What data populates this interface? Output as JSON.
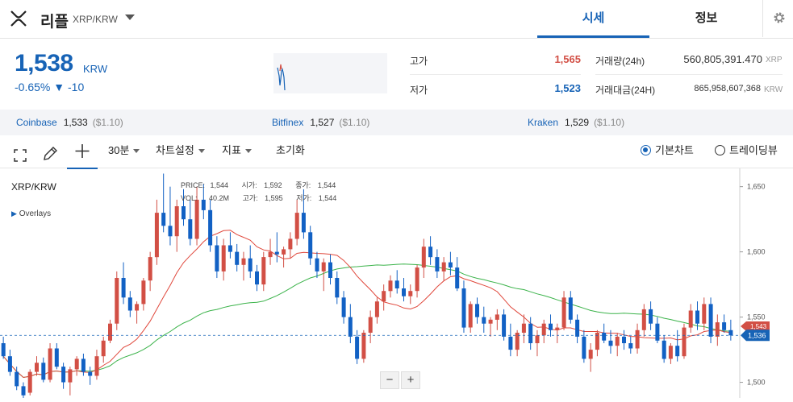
{
  "header": {
    "coin_name": "리플",
    "pair": "XRP/KRW",
    "tabs": [
      {
        "label": "시세",
        "active": true
      },
      {
        "label": "정보",
        "active": false
      }
    ],
    "icons": {
      "logo": "xrp-logo",
      "dropdown": "chevron-down-icon",
      "settings": "gear-icon"
    }
  },
  "summary": {
    "price": "1,538",
    "price_unit": "KRW",
    "change_pct": "-0.65%",
    "change_arrow": "▼",
    "change_abs": "-10",
    "high_label": "고가",
    "high_value": "1,565",
    "low_label": "저가",
    "low_value": "1,523",
    "volume_label": "거래량(24h)",
    "volume_value": "560,805,391.470",
    "volume_unit": "XRP",
    "amount_label": "거래대금(24H)",
    "amount_value": "865,958,607,368",
    "amount_unit": "KRW"
  },
  "exchanges": [
    {
      "name": "Coinbase",
      "price": "1,533",
      "usd": "($1.10)"
    },
    {
      "name": "Bitfinex",
      "price": "1,527",
      "usd": "($1.10)"
    },
    {
      "name": "Kraken",
      "price": "1,529",
      "usd": "($1.10)"
    }
  ],
  "toolbar": {
    "interval": "30분",
    "chart_settings": "차트설정",
    "indicators": "지표",
    "reset": "초기화",
    "view_basic": "기본차트",
    "view_tradingview": "트레이딩뷰",
    "icons": [
      "fullscreen-icon",
      "pencil-icon",
      "crosshair-icon"
    ]
  },
  "chart_panel": {
    "symbol": "XRP/KRW",
    "overlays": "Overlays",
    "ohlc": {
      "price_label": "PRICE:",
      "price": "1,544",
      "open_label": "시가:",
      "open": "1,592",
      "close_label": "종가:",
      "close": "1,544",
      "vol_label": "VOL:",
      "vol": "40.2M",
      "high_label": "고가:",
      "high": "1,595",
      "low_label": "저가:",
      "low": "1,544"
    },
    "zoom_out": "−",
    "zoom_in": "+"
  },
  "colors": {
    "up": "#d24f45",
    "down": "#1261c4",
    "ma_short": "#e0483c",
    "ma_long": "#3bb34a",
    "accent": "#1763b6"
  },
  "chart_data": {
    "type": "candlestick",
    "y_ticks": [
      "1,650",
      "1,600",
      "1,550",
      "1,500"
    ],
    "ylim": [
      1488,
      1664
    ],
    "last_price_tag": "1,536",
    "prev_tag": "1,543",
    "last_price": 1536,
    "grid": false,
    "series": [
      {
        "values": [
          [
            1530,
            1535,
            1518,
            1520
          ],
          [
            1520,
            1525,
            1505,
            1508
          ],
          [
            1508,
            1512,
            1494,
            1497
          ],
          [
            1497,
            1500,
            1488,
            1490
          ],
          [
            1492,
            1510,
            1490,
            1508
          ],
          [
            1508,
            1520,
            1505,
            1515
          ],
          [
            1515,
            1519,
            1500,
            1502
          ],
          [
            1502,
            1530,
            1500,
            1526
          ],
          [
            1526,
            1530,
            1510,
            1512
          ],
          [
            1512,
            1515,
            1495,
            1500
          ],
          [
            1500,
            1512,
            1490,
            1510
          ],
          [
            1510,
            1520,
            1505,
            1518
          ],
          [
            1518,
            1522,
            1505,
            1508
          ],
          [
            1508,
            1512,
            1498,
            1505
          ],
          [
            1505,
            1525,
            1502,
            1520
          ],
          [
            1520,
            1535,
            1515,
            1532
          ],
          [
            1532,
            1548,
            1530,
            1545
          ],
          [
            1545,
            1585,
            1540,
            1580
          ],
          [
            1580,
            1592,
            1560,
            1565
          ],
          [
            1565,
            1570,
            1550,
            1555
          ],
          [
            1555,
            1562,
            1545,
            1560
          ],
          [
            1560,
            1580,
            1555,
            1578
          ],
          [
            1578,
            1600,
            1570,
            1596
          ],
          [
            1596,
            1640,
            1590,
            1630
          ],
          [
            1630,
            1660,
            1615,
            1620
          ],
          [
            1620,
            1650,
            1605,
            1612
          ],
          [
            1612,
            1640,
            1600,
            1635
          ],
          [
            1635,
            1648,
            1620,
            1625
          ],
          [
            1625,
            1640,
            1605,
            1610
          ],
          [
            1610,
            1650,
            1605,
            1640
          ],
          [
            1640,
            1652,
            1625,
            1632
          ],
          [
            1632,
            1640,
            1600,
            1605
          ],
          [
            1605,
            1612,
            1580,
            1585
          ],
          [
            1585,
            1610,
            1578,
            1605
          ],
          [
            1605,
            1615,
            1595,
            1600
          ],
          [
            1600,
            1606,
            1585,
            1590
          ],
          [
            1590,
            1600,
            1578,
            1595
          ],
          [
            1595,
            1605,
            1580,
            1585
          ],
          [
            1585,
            1590,
            1570,
            1575
          ],
          [
            1575,
            1600,
            1570,
            1596
          ],
          [
            1596,
            1610,
            1590,
            1600
          ],
          [
            1600,
            1615,
            1592,
            1598
          ],
          [
            1598,
            1604,
            1588,
            1602
          ],
          [
            1602,
            1615,
            1595,
            1610
          ],
          [
            1610,
            1640,
            1605,
            1630
          ],
          [
            1630,
            1648,
            1610,
            1615
          ],
          [
            1615,
            1620,
            1590,
            1595
          ],
          [
            1595,
            1600,
            1580,
            1585
          ],
          [
            1585,
            1595,
            1570,
            1592
          ],
          [
            1592,
            1598,
            1575,
            1580
          ],
          [
            1580,
            1585,
            1560,
            1565
          ],
          [
            1565,
            1570,
            1545,
            1550
          ],
          [
            1550,
            1560,
            1530,
            1535
          ],
          [
            1535,
            1540,
            1514,
            1518
          ],
          [
            1518,
            1540,
            1515,
            1538
          ],
          [
            1538,
            1555,
            1530,
            1550
          ],
          [
            1550,
            1565,
            1545,
            1562
          ],
          [
            1562,
            1575,
            1555,
            1570
          ],
          [
            1570,
            1582,
            1565,
            1578
          ],
          [
            1578,
            1586,
            1568,
            1572
          ],
          [
            1572,
            1580,
            1562,
            1566
          ],
          [
            1566,
            1575,
            1560,
            1570
          ],
          [
            1570,
            1590,
            1565,
            1588
          ],
          [
            1588,
            1610,
            1580,
            1604
          ],
          [
            1604,
            1612,
            1590,
            1596
          ],
          [
            1596,
            1602,
            1580,
            1585
          ],
          [
            1585,
            1596,
            1578,
            1592
          ],
          [
            1592,
            1600,
            1582,
            1588
          ],
          [
            1588,
            1596,
            1570,
            1572
          ],
          [
            1572,
            1578,
            1538,
            1542
          ],
          [
            1542,
            1562,
            1538,
            1560
          ],
          [
            1560,
            1565,
            1545,
            1550
          ],
          [
            1550,
            1558,
            1538,
            1545
          ],
          [
            1545,
            1550,
            1535,
            1548
          ],
          [
            1548,
            1556,
            1540,
            1552
          ],
          [
            1552,
            1556,
            1532,
            1535
          ],
          [
            1535,
            1545,
            1520,
            1525
          ],
          [
            1525,
            1540,
            1520,
            1538
          ],
          [
            1538,
            1552,
            1530,
            1545
          ],
          [
            1545,
            1550,
            1525,
            1530
          ],
          [
            1530,
            1540,
            1520,
            1536
          ],
          [
            1536,
            1548,
            1530,
            1545
          ],
          [
            1545,
            1552,
            1535,
            1540
          ],
          [
            1540,
            1545,
            1530,
            1542
          ],
          [
            1542,
            1570,
            1540,
            1565
          ],
          [
            1565,
            1570,
            1545,
            1548
          ],
          [
            1548,
            1552,
            1530,
            1535
          ],
          [
            1535,
            1540,
            1515,
            1518
          ],
          [
            1518,
            1530,
            1508,
            1525
          ],
          [
            1525,
            1540,
            1520,
            1538
          ],
          [
            1538,
            1545,
            1530,
            1532
          ],
          [
            1532,
            1540,
            1522,
            1528
          ],
          [
            1528,
            1538,
            1520,
            1535
          ],
          [
            1535,
            1540,
            1525,
            1530
          ],
          [
            1530,
            1535,
            1522,
            1526
          ],
          [
            1526,
            1545,
            1522,
            1540
          ],
          [
            1540,
            1560,
            1535,
            1556
          ],
          [
            1556,
            1562,
            1540,
            1545
          ],
          [
            1545,
            1550,
            1530,
            1532
          ],
          [
            1532,
            1536,
            1515,
            1518
          ],
          [
            1518,
            1530,
            1514,
            1528
          ],
          [
            1528,
            1540,
            1516,
            1520
          ],
          [
            1520,
            1545,
            1518,
            1542
          ],
          [
            1542,
            1560,
            1538,
            1555
          ],
          [
            1555,
            1562,
            1540,
            1545
          ],
          [
            1545,
            1565,
            1540,
            1560
          ],
          [
            1560,
            1565,
            1530,
            1535
          ],
          [
            1535,
            1552,
            1528,
            1546
          ],
          [
            1546,
            1552,
            1538,
            1540
          ],
          [
            1540,
            1548,
            1532,
            1536
          ]
        ]
      }
    ]
  }
}
